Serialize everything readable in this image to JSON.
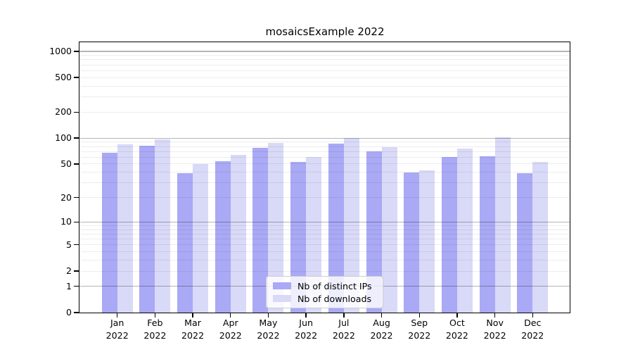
{
  "title": "mosaicsExample 2022",
  "chart_data": {
    "type": "bar",
    "title": "mosaicsExample 2022",
    "categories": [
      "Jan",
      "Feb",
      "Mar",
      "Apr",
      "May",
      "Jun",
      "Jul",
      "Aug",
      "Sep",
      "Oct",
      "Nov",
      "Dec"
    ],
    "year_label": "2022",
    "series": [
      {
        "name": "Nb of distinct IPs",
        "color": "#a9a9f5",
        "values": [
          68,
          82,
          39,
          54,
          77,
          53,
          87,
          70,
          40,
          60,
          61,
          39
        ]
      },
      {
        "name": "Nb of downloads",
        "color": "#d9d9f8",
        "values": [
          85,
          97,
          50,
          64,
          88,
          60,
          100,
          79,
          42,
          75,
          103,
          53
        ]
      }
    ],
    "y_axis": {
      "scale": "log1p",
      "tick_values": [
        0,
        1,
        2,
        5,
        10,
        20,
        50,
        100,
        200,
        500,
        1000
      ],
      "range": [
        0,
        1273
      ]
    },
    "x_axis": {
      "tick_label_format": "month newline year"
    },
    "grid": {
      "horizontal": true,
      "major_at_powers_of_ten": true,
      "minor_log_gridlines": true
    },
    "legend": {
      "position": "inside-bottom-center",
      "entries": [
        "Nb of distinct IPs",
        "Nb of downloads"
      ]
    }
  },
  "colors": {
    "ips_bar": "#a9a9f5",
    "downloads_bar": "#d9d9f8",
    "major_gridline": "#b3b3b3",
    "minor_gridline": "#ececec",
    "axis": "#000000",
    "legend_border": "#cccccc",
    "background": "#ffffff"
  }
}
